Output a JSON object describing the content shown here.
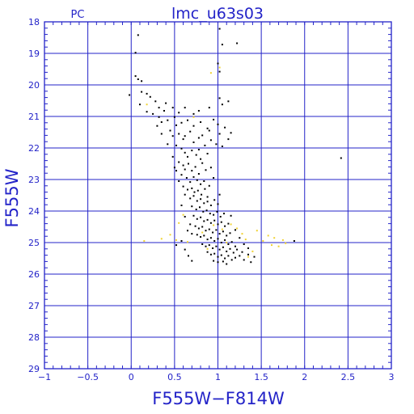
{
  "header": {
    "camera": "PC",
    "field": "lmc_u63s03"
  },
  "colors": {
    "axis": "#2323c8",
    "grid": "#2323c8",
    "stars_primary": "#000000",
    "stars_secondary": "#f0d232"
  },
  "chart_data": {
    "type": "scatter",
    "title": "lmc_u63s03",
    "subtitle": "PC",
    "xlabel": "F555W−F814W",
    "ylabel": "F555W",
    "xlim": [
      -1,
      3
    ],
    "ylim": [
      29,
      18
    ],
    "y_inverted": true,
    "grid": true,
    "x_ticks": [
      "−1",
      "−0.5",
      "0",
      "0.5",
      "1",
      "1.5",
      "2",
      "2.5",
      "3"
    ],
    "y_ticks": [
      "18",
      "19",
      "20",
      "21",
      "22",
      "23",
      "24",
      "25",
      "26",
      "27",
      "28",
      "29"
    ],
    "series": [
      {
        "color": "#000000",
        "points": [
          [
            0.08,
            18.42
          ],
          [
            0.05,
            18.98
          ],
          [
            1.02,
            18.22
          ],
          [
            1.05,
            18.72
          ],
          [
            1.22,
            18.68
          ],
          [
            0.05,
            19.72
          ],
          [
            0.08,
            19.82
          ],
          [
            0.12,
            19.88
          ],
          [
            1.0,
            19.32
          ],
          [
            1.02,
            19.58
          ],
          [
            -0.02,
            20.32
          ],
          [
            0.12,
            20.22
          ],
          [
            0.18,
            20.28
          ],
          [
            0.22,
            20.38
          ],
          [
            0.1,
            20.62
          ],
          [
            0.28,
            20.52
          ],
          [
            0.32,
            20.72
          ],
          [
            0.4,
            20.58
          ],
          [
            0.38,
            20.82
          ],
          [
            0.48,
            20.72
          ],
          [
            0.55,
            20.88
          ],
          [
            0.62,
            20.72
          ],
          [
            0.72,
            20.92
          ],
          [
            0.78,
            20.82
          ],
          [
            0.9,
            20.72
          ],
          [
            1.02,
            20.42
          ],
          [
            1.05,
            20.62
          ],
          [
            1.12,
            20.52
          ],
          [
            0.18,
            20.85
          ],
          [
            0.25,
            20.92
          ],
          [
            0.32,
            21.02
          ],
          [
            0.35,
            21.18
          ],
          [
            0.42,
            21.12
          ],
          [
            0.5,
            21.02
          ],
          [
            0.52,
            21.28
          ],
          [
            0.58,
            21.2
          ],
          [
            0.65,
            21.12
          ],
          [
            0.72,
            21.3
          ],
          [
            0.8,
            21.18
          ],
          [
            0.88,
            21.38
          ],
          [
            0.95,
            21.1
          ],
          [
            1.0,
            21.25
          ],
          [
            1.02,
            21.55
          ],
          [
            1.08,
            21.35
          ],
          [
            1.12,
            21.72
          ],
          [
            1.15,
            21.52
          ],
          [
            0.45,
            21.45
          ],
          [
            0.48,
            21.62
          ],
          [
            0.55,
            21.55
          ],
          [
            0.6,
            21.72
          ],
          [
            0.62,
            21.62
          ],
          [
            0.68,
            21.48
          ],
          [
            0.72,
            21.82
          ],
          [
            0.78,
            21.68
          ],
          [
            0.85,
            21.92
          ],
          [
            0.92,
            21.75
          ],
          [
            0.98,
            21.88
          ],
          [
            1.05,
            21.95
          ],
          [
            0.42,
            21.88
          ],
          [
            0.52,
            21.92
          ],
          [
            0.58,
            22.02
          ],
          [
            0.62,
            22.15
          ],
          [
            0.65,
            22.28
          ],
          [
            0.7,
            22.08
          ],
          [
            0.75,
            22.22
          ],
          [
            0.8,
            22.35
          ],
          [
            0.88,
            22.18
          ],
          [
            0.55,
            22.45
          ],
          [
            0.6,
            22.55
          ],
          [
            0.62,
            22.68
          ],
          [
            0.66,
            22.5
          ],
          [
            0.7,
            22.72
          ],
          [
            0.74,
            22.6
          ],
          [
            0.78,
            22.82
          ],
          [
            0.82,
            22.48
          ],
          [
            0.86,
            22.7
          ],
          [
            0.52,
            22.72
          ],
          [
            0.58,
            22.85
          ],
          [
            0.64,
            22.95
          ],
          [
            0.68,
            23.08
          ],
          [
            0.72,
            22.92
          ],
          [
            0.76,
            23.02
          ],
          [
            0.8,
            23.15
          ],
          [
            0.84,
            23.05
          ],
          [
            0.6,
            23.22
          ],
          [
            0.65,
            23.32
          ],
          [
            0.7,
            23.28
          ],
          [
            0.73,
            23.4
          ],
          [
            0.77,
            23.35
          ],
          [
            0.81,
            23.48
          ],
          [
            0.85,
            23.3
          ],
          [
            0.88,
            23.55
          ],
          [
            0.62,
            23.48
          ],
          [
            0.68,
            23.6
          ],
          [
            0.72,
            23.52
          ],
          [
            0.76,
            23.68
          ],
          [
            0.8,
            23.62
          ],
          [
            0.84,
            23.75
          ],
          [
            0.88,
            23.7
          ],
          [
            0.92,
            23.82
          ],
          [
            0.96,
            23.65
          ],
          [
            1.0,
            23.78
          ],
          [
            0.7,
            23.85
          ],
          [
            0.75,
            23.95
          ],
          [
            0.79,
            23.88
          ],
          [
            0.83,
            24.02
          ],
          [
            0.87,
            23.98
          ],
          [
            0.91,
            24.08
          ],
          [
            0.95,
            24.12
          ],
          [
            0.99,
            24.02
          ],
          [
            1.03,
            24.18
          ],
          [
            1.07,
            24.08
          ],
          [
            0.72,
            24.15
          ],
          [
            0.76,
            24.25
          ],
          [
            0.8,
            24.2
          ],
          [
            0.84,
            24.32
          ],
          [
            0.88,
            24.28
          ],
          [
            0.92,
            24.38
          ],
          [
            0.96,
            24.3
          ],
          [
            1.0,
            24.42
          ],
          [
            1.04,
            24.35
          ],
          [
            1.08,
            24.48
          ],
          [
            1.12,
            24.4
          ],
          [
            0.74,
            24.48
          ],
          [
            0.78,
            24.55
          ],
          [
            0.82,
            24.5
          ],
          [
            0.86,
            24.62
          ],
          [
            0.9,
            24.58
          ],
          [
            0.94,
            24.68
          ],
          [
            0.98,
            24.6
          ],
          [
            1.02,
            24.72
          ],
          [
            1.06,
            24.65
          ],
          [
            1.1,
            24.78
          ],
          [
            1.14,
            24.7
          ],
          [
            0.76,
            24.75
          ],
          [
            0.8,
            24.82
          ],
          [
            0.84,
            24.78
          ],
          [
            0.88,
            24.9
          ],
          [
            0.92,
            24.85
          ],
          [
            0.96,
            24.95
          ],
          [
            1.0,
            24.88
          ],
          [
            1.04,
            25.0
          ],
          [
            1.08,
            24.92
          ],
          [
            1.12,
            25.05
          ],
          [
            1.16,
            24.98
          ],
          [
            0.82,
            25.05
          ],
          [
            0.86,
            25.12
          ],
          [
            0.9,
            25.08
          ],
          [
            0.94,
            25.18
          ],
          [
            0.98,
            25.12
          ],
          [
            1.02,
            25.22
          ],
          [
            1.06,
            25.15
          ],
          [
            1.1,
            25.28
          ],
          [
            1.14,
            25.2
          ],
          [
            1.18,
            25.32
          ],
          [
            0.88,
            25.3
          ],
          [
            0.92,
            25.38
          ],
          [
            0.96,
            25.35
          ],
          [
            1.0,
            25.45
          ],
          [
            1.04,
            25.4
          ],
          [
            1.08,
            25.5
          ],
          [
            1.12,
            25.42
          ],
          [
            1.16,
            25.55
          ],
          [
            1.2,
            25.48
          ],
          [
            0.95,
            25.58
          ],
          [
            1.0,
            25.62
          ],
          [
            1.06,
            25.6
          ],
          [
            1.1,
            25.68
          ],
          [
            1.25,
            25.42
          ],
          [
            1.3,
            25.55
          ],
          [
            1.35,
            25.38
          ],
          [
            1.38,
            25.62
          ],
          [
            1.42,
            25.45
          ],
          [
            0.62,
            25.22
          ],
          [
            0.66,
            25.42
          ],
          [
            0.7,
            25.58
          ],
          [
            0.58,
            24.95
          ],
          [
            0.52,
            25.08
          ],
          [
            0.65,
            24.62
          ],
          [
            1.25,
            24.85
          ],
          [
            1.3,
            25.05
          ],
          [
            1.35,
            25.18
          ],
          [
            1.2,
            25.12
          ],
          [
            1.88,
            24.95
          ],
          [
            2.42,
            22.32
          ],
          [
            0.55,
            23.05
          ],
          [
            0.5,
            22.62
          ],
          [
            0.48,
            22.28
          ],
          [
            0.92,
            22.62
          ],
          [
            0.95,
            22.95
          ],
          [
            0.9,
            23.2
          ],
          [
            1.02,
            23.48
          ],
          [
            0.58,
            23.82
          ],
          [
            0.62,
            24.18
          ],
          [
            0.68,
            24.42
          ],
          [
            0.7,
            24.72
          ],
          [
            1.15,
            24.15
          ],
          [
            1.2,
            24.6
          ],
          [
            1.22,
            25.22
          ],
          [
            1.28,
            25.3
          ],
          [
            0.78,
            22.05
          ],
          [
            0.82,
            21.6
          ],
          [
            0.9,
            21.45
          ],
          [
            0.3,
            21.3
          ],
          [
            0.35,
            21.55
          ]
        ]
      },
      {
        "color": "#f0d232",
        "points": [
          [
            0.92,
            19.62
          ],
          [
            1.02,
            19.45
          ],
          [
            0.18,
            20.62
          ],
          [
            0.72,
            21.02
          ],
          [
            0.6,
            24.12
          ],
          [
            0.55,
            24.38
          ],
          [
            0.45,
            24.75
          ],
          [
            0.52,
            24.92
          ],
          [
            0.15,
            24.95
          ],
          [
            0.35,
            24.88
          ],
          [
            1.15,
            24.42
          ],
          [
            1.22,
            24.55
          ],
          [
            1.28,
            24.72
          ],
          [
            1.32,
            24.9
          ],
          [
            1.45,
            24.62
          ],
          [
            1.52,
            24.95
          ],
          [
            1.58,
            24.78
          ],
          [
            1.62,
            25.08
          ],
          [
            1.65,
            24.85
          ],
          [
            1.7,
            25.12
          ],
          [
            1.75,
            24.92
          ],
          [
            1.78,
            25.02
          ],
          [
            1.4,
            25.28
          ],
          [
            1.35,
            25.45
          ],
          [
            1.05,
            24.58
          ],
          [
            0.95,
            24.45
          ],
          [
            0.88,
            25.2
          ],
          [
            0.82,
            24.68
          ],
          [
            1.1,
            25.0
          ],
          [
            0.65,
            24.98
          ]
        ]
      }
    ]
  }
}
